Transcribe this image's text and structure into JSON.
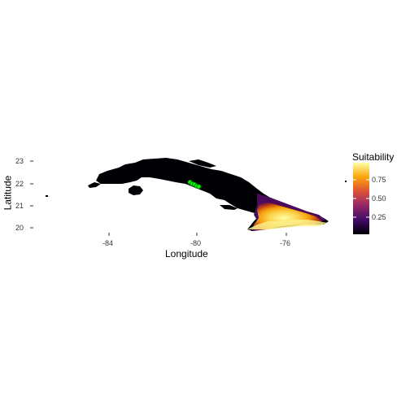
{
  "chart_data": {
    "type": "heatmap",
    "xlabel": "Longitude",
    "ylabel": "Latitude",
    "x_ticks": [
      "-84",
      "-80",
      "-76"
    ],
    "y_ticks": [
      "23",
      "22",
      "21",
      "20"
    ],
    "xlim": [
      -85.3,
      -74.1
    ],
    "ylim": [
      19.7,
      23.4
    ],
    "legend": {
      "title": "Suitability",
      "labels": [
        "0.75",
        "0.50",
        "0.25"
      ],
      "colors": [
        "#000004",
        "#420a68",
        "#932667",
        "#dd513a",
        "#fca50a",
        "#fcffa4"
      ],
      "placement": "right"
    },
    "occurrence_points": [
      {
        "lon": -80.35,
        "lat": 22.05
      },
      {
        "lon": -80.25,
        "lat": 21.98
      },
      {
        "lon": -80.15,
        "lat": 21.95
      },
      {
        "lon": -80.05,
        "lat": 21.88
      },
      {
        "lon": -79.95,
        "lat": 21.85
      }
    ],
    "grid": false
  },
  "colors": {
    "land_low": "#000004",
    "point_fill": "#00ff00",
    "point_stroke": "#006400"
  }
}
